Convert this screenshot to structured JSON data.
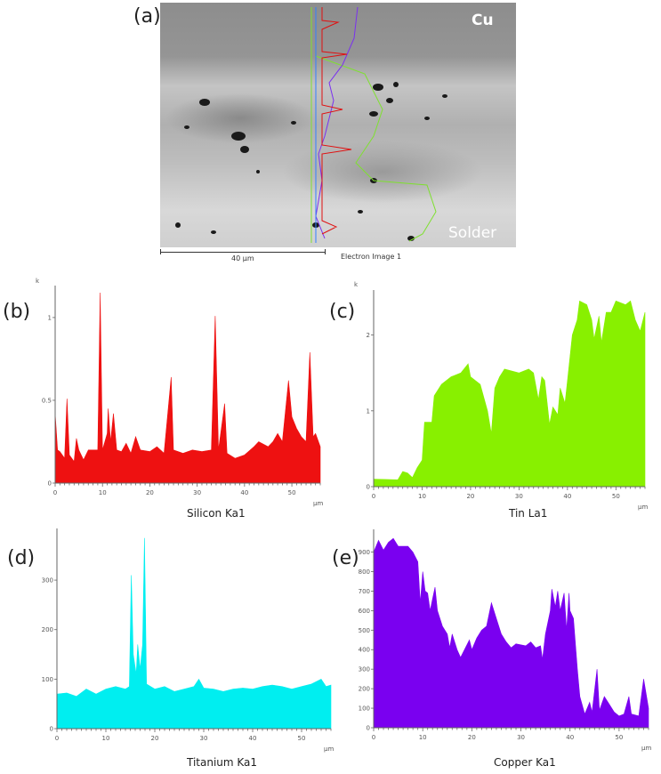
{
  "panel_a": {
    "label": "(a)",
    "cu_label": "Cu",
    "solder_label": "Solder",
    "scale_bar": "40 µm",
    "image_caption": "Electron Image 1"
  },
  "chart_data": [
    {
      "id": "b",
      "panel_label": "(b)",
      "type": "area",
      "title": "Silicon Ka1",
      "xlabel": "µm",
      "ylabel": "k",
      "color": "#ee1111",
      "xlim": [
        0,
        56
      ],
      "ylim": [
        0,
        1.15
      ],
      "xticks": [
        "0",
        "10",
        "20",
        "30",
        "40",
        "50"
      ],
      "yticks": [
        "0",
        "0.5",
        "1"
      ],
      "points": [
        [
          0,
          0.42
        ],
        [
          0.5,
          0.2
        ],
        [
          1,
          0.19
        ],
        [
          2,
          0.15
        ],
        [
          2.5,
          0.51
        ],
        [
          3,
          0.17
        ],
        [
          4,
          0.13
        ],
        [
          4.5,
          0.27
        ],
        [
          5,
          0.2
        ],
        [
          6,
          0.14
        ],
        [
          7,
          0.2
        ],
        [
          8,
          0.2
        ],
        [
          9,
          0.2
        ],
        [
          9.5,
          1.15
        ],
        [
          10,
          0.2
        ],
        [
          11,
          0.3
        ],
        [
          11.2,
          0.45
        ],
        [
          11.7,
          0.25
        ],
        [
          12.3,
          0.42
        ],
        [
          13,
          0.2
        ],
        [
          14,
          0.19
        ],
        [
          15,
          0.24
        ],
        [
          16,
          0.18
        ],
        [
          17,
          0.28
        ],
        [
          18,
          0.2
        ],
        [
          20,
          0.19
        ],
        [
          21.5,
          0.22
        ],
        [
          23,
          0.18
        ],
        [
          24.5,
          0.64
        ],
        [
          25,
          0.2
        ],
        [
          27,
          0.18
        ],
        [
          29,
          0.2
        ],
        [
          31,
          0.19
        ],
        [
          33,
          0.2
        ],
        [
          33.8,
          1.01
        ],
        [
          34.5,
          0.2
        ],
        [
          35.8,
          0.48
        ],
        [
          36.3,
          0.18
        ],
        [
          38,
          0.15
        ],
        [
          40,
          0.17
        ],
        [
          42,
          0.22
        ],
        [
          43,
          0.25
        ],
        [
          45,
          0.22
        ],
        [
          46,
          0.25
        ],
        [
          47,
          0.3
        ],
        [
          48,
          0.25
        ],
        [
          49.3,
          0.62
        ],
        [
          50,
          0.4
        ],
        [
          51,
          0.33
        ],
        [
          52,
          0.28
        ],
        [
          53,
          0.25
        ],
        [
          53.8,
          0.79
        ],
        [
          54.5,
          0.28
        ],
        [
          55,
          0.3
        ],
        [
          56,
          0.22
        ]
      ]
    },
    {
      "id": "c",
      "panel_label": "(c)",
      "type": "area",
      "title": "Tin La1",
      "xlabel": "µm",
      "ylabel": "k",
      "color": "#88f000",
      "xlim": [
        0,
        56
      ],
      "ylim": [
        0,
        2.5
      ],
      "xticks": [
        "0",
        "10",
        "20",
        "30",
        "40",
        "50"
      ],
      "yticks": [
        "0",
        "1",
        "2"
      ],
      "points": [
        [
          0,
          0.1
        ],
        [
          5,
          0.09
        ],
        [
          6,
          0.2
        ],
        [
          7,
          0.18
        ],
        [
          8,
          0.12
        ],
        [
          9,
          0.25
        ],
        [
          10,
          0.35
        ],
        [
          10.5,
          0.85
        ],
        [
          12,
          0.85
        ],
        [
          12.5,
          1.2
        ],
        [
          14,
          1.35
        ],
        [
          16,
          1.45
        ],
        [
          18,
          1.5
        ],
        [
          19.5,
          1.62
        ],
        [
          20,
          1.45
        ],
        [
          22,
          1.35
        ],
        [
          23.5,
          1.0
        ],
        [
          24.3,
          0.7
        ],
        [
          25,
          1.3
        ],
        [
          26,
          1.45
        ],
        [
          27,
          1.55
        ],
        [
          30,
          1.5
        ],
        [
          32,
          1.55
        ],
        [
          33,
          1.5
        ],
        [
          34,
          1.15
        ],
        [
          34.7,
          1.45
        ],
        [
          35.3,
          1.4
        ],
        [
          36.3,
          0.82
        ],
        [
          37,
          1.05
        ],
        [
          38,
          0.95
        ],
        [
          38.5,
          1.3
        ],
        [
          39.5,
          1.1
        ],
        [
          40,
          1.4
        ],
        [
          41,
          2.0
        ],
        [
          42,
          2.2
        ],
        [
          42.5,
          2.45
        ],
        [
          44,
          2.4
        ],
        [
          45,
          2.2
        ],
        [
          45.5,
          1.95
        ],
        [
          46.5,
          2.25
        ],
        [
          47,
          1.9
        ],
        [
          48,
          2.3
        ],
        [
          49,
          2.3
        ],
        [
          50,
          2.45
        ],
        [
          52,
          2.4
        ],
        [
          53,
          2.45
        ],
        [
          54,
          2.2
        ],
        [
          55,
          2.05
        ],
        [
          56,
          2.3
        ]
      ]
    },
    {
      "id": "d",
      "panel_label": "(d)",
      "type": "area",
      "title": "Titanium Ka1",
      "xlabel": "µm",
      "ylabel": "",
      "color": "#00eef0",
      "xlim": [
        0,
        56
      ],
      "ylim": [
        0,
        390
      ],
      "xticks": [
        "0",
        "10",
        "20",
        "30",
        "40",
        "50"
      ],
      "yticks": [
        "0",
        "100",
        "200",
        "300"
      ],
      "points": [
        [
          0,
          70
        ],
        [
          2,
          72
        ],
        [
          4,
          65
        ],
        [
          6,
          80
        ],
        [
          8,
          70
        ],
        [
          10,
          80
        ],
        [
          12,
          85
        ],
        [
          14,
          80
        ],
        [
          14.8,
          85
        ],
        [
          15.2,
          310
        ],
        [
          15.6,
          150
        ],
        [
          16.2,
          110
        ],
        [
          16.5,
          170
        ],
        [
          17,
          120
        ],
        [
          17.5,
          170
        ],
        [
          17.9,
          385
        ],
        [
          18.3,
          90
        ],
        [
          20,
          80
        ],
        [
          22,
          85
        ],
        [
          24,
          75
        ],
        [
          26,
          80
        ],
        [
          28,
          85
        ],
        [
          29,
          100
        ],
        [
          30,
          82
        ],
        [
          32,
          80
        ],
        [
          34,
          75
        ],
        [
          36,
          80
        ],
        [
          38,
          82
        ],
        [
          40,
          80
        ],
        [
          42,
          85
        ],
        [
          44,
          88
        ],
        [
          46,
          85
        ],
        [
          48,
          80
        ],
        [
          50,
          85
        ],
        [
          52,
          90
        ],
        [
          54,
          100
        ],
        [
          55,
          85
        ],
        [
          56,
          88
        ]
      ]
    },
    {
      "id": "e",
      "panel_label": "(e)",
      "type": "area",
      "title": "Copper Ka1",
      "xlabel": "µm",
      "ylabel": "",
      "color": "#7a00f0",
      "xlim": [
        0,
        56
      ],
      "ylim": [
        0,
        980
      ],
      "xticks": [
        "0",
        "10",
        "20",
        "30",
        "40",
        "50"
      ],
      "yticks": [
        "0",
        "100",
        "200",
        "300",
        "400",
        "500",
        "600",
        "700",
        "800",
        "900"
      ],
      "points": [
        [
          0,
          900
        ],
        [
          1,
          960
        ],
        [
          2,
          910
        ],
        [
          3,
          950
        ],
        [
          4,
          970
        ],
        [
          5,
          930
        ],
        [
          7,
          930
        ],
        [
          8,
          900
        ],
        [
          9,
          850
        ],
        [
          9.5,
          640
        ],
        [
          10,
          800
        ],
        [
          10.5,
          700
        ],
        [
          11,
          690
        ],
        [
          11.5,
          600
        ],
        [
          12,
          660
        ],
        [
          12.5,
          720
        ],
        [
          13,
          600
        ],
        [
          14,
          520
        ],
        [
          15,
          480
        ],
        [
          15.5,
          410
        ],
        [
          16,
          480
        ],
        [
          17,
          400
        ],
        [
          17.7,
          360
        ],
        [
          18.5,
          400
        ],
        [
          19.5,
          450
        ],
        [
          20,
          400
        ],
        [
          21,
          460
        ],
        [
          22,
          500
        ],
        [
          23,
          520
        ],
        [
          24,
          640
        ],
        [
          25,
          560
        ],
        [
          26,
          480
        ],
        [
          27,
          440
        ],
        [
          28,
          410
        ],
        [
          29,
          430
        ],
        [
          31,
          420
        ],
        [
          32,
          440
        ],
        [
          33,
          410
        ],
        [
          34,
          420
        ],
        [
          34.4,
          350
        ],
        [
          35,
          480
        ],
        [
          36,
          600
        ],
        [
          36.3,
          710
        ],
        [
          37,
          620
        ],
        [
          37.5,
          700
        ],
        [
          38,
          600
        ],
        [
          38.8,
          690
        ],
        [
          39.3,
          500
        ],
        [
          39.8,
          690
        ],
        [
          40,
          600
        ],
        [
          40.7,
          560
        ],
        [
          41.5,
          300
        ],
        [
          42,
          160
        ],
        [
          43,
          70
        ],
        [
          44,
          130
        ],
        [
          44.5,
          80
        ],
        [
          45.5,
          300
        ],
        [
          46,
          90
        ],
        [
          47,
          160
        ],
        [
          48,
          120
        ],
        [
          49,
          80
        ],
        [
          50,
          60
        ],
        [
          51,
          70
        ],
        [
          52,
          160
        ],
        [
          52.5,
          70
        ],
        [
          54,
          60
        ],
        [
          55,
          250
        ],
        [
          56,
          100
        ]
      ]
    }
  ]
}
